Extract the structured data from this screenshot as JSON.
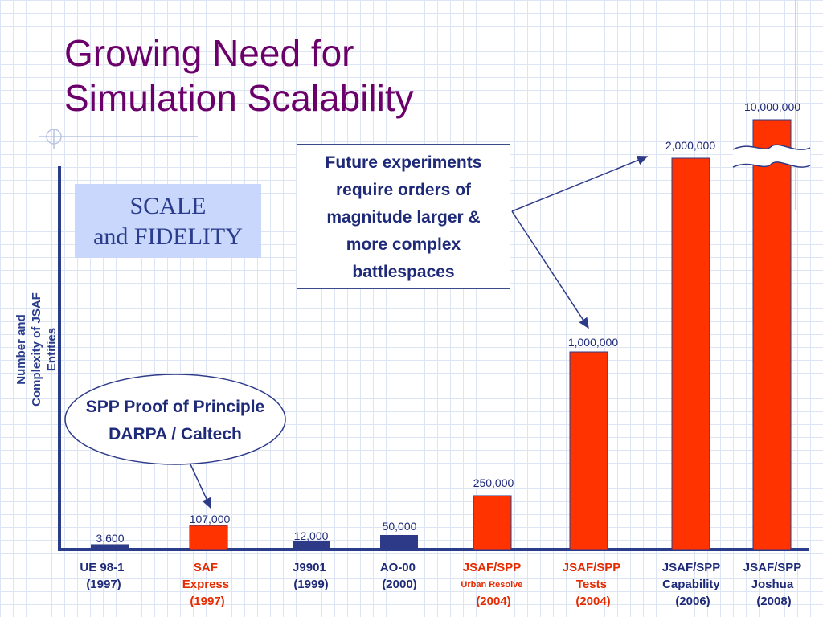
{
  "title_lines": [
    "Growing Need for",
    "Simulation Scalability"
  ],
  "scale_box": {
    "line1": "SCALE",
    "line2": "and FIDELITY"
  },
  "callout": {
    "lines": [
      "Future experiments",
      "require orders of",
      "magnitude larger &",
      "more complex",
      "battlespaces"
    ]
  },
  "ellipse_note": {
    "line1": "SPP Proof of Principle",
    "line2": "DARPA / Caltech"
  },
  "chart_data": {
    "type": "bar",
    "ylabel": "Number and Complexity of JSAF Entities",
    "y_scale": "broken (non-linear)",
    "grid": false,
    "categories": [
      {
        "lines": [
          "UE 98-1",
          "(1997)"
        ],
        "color": "#1e2a78"
      },
      {
        "lines": [
          "SAF",
          "Express",
          "(1997)"
        ],
        "color": "#e52a00"
      },
      {
        "lines": [
          "J9901",
          "(1999)"
        ],
        "color": "#1e2a78"
      },
      {
        "lines": [
          "AO-00",
          "(2000)"
        ],
        "color": "#1e2a78"
      },
      {
        "lines": [
          "JSAF/SPP",
          "Urban Resolve",
          "(2004)"
        ],
        "color": "#e52a00"
      },
      {
        "lines": [
          "JSAF/SPP",
          "Tests",
          "(2004)"
        ],
        "color": "#e52a00"
      },
      {
        "lines": [
          "JSAF/SPP",
          "Capability",
          "(2006)"
        ],
        "color": "#1e2a78"
      },
      {
        "lines": [
          "JSAF/SPP",
          "Joshua",
          "(2008)"
        ],
        "color": "#1e2a78"
      }
    ],
    "values": [
      3600,
      107000,
      12000,
      50000,
      250000,
      1000000,
      2000000,
      10000000
    ],
    "data_labels": [
      "3,600",
      "107,000",
      "12,000",
      "50,000",
      "250,000",
      "1,000,000",
      "2,000,000",
      "10,000,000"
    ],
    "bar_colors": [
      "#2d3a88",
      "#ff3300",
      "#2d3a88",
      "#2d3a88",
      "#ff3300",
      "#ff3300",
      "#ff3300",
      "#ff3300"
    ],
    "axis_color": "#2a3c8c",
    "break_on_last_bar": true
  }
}
